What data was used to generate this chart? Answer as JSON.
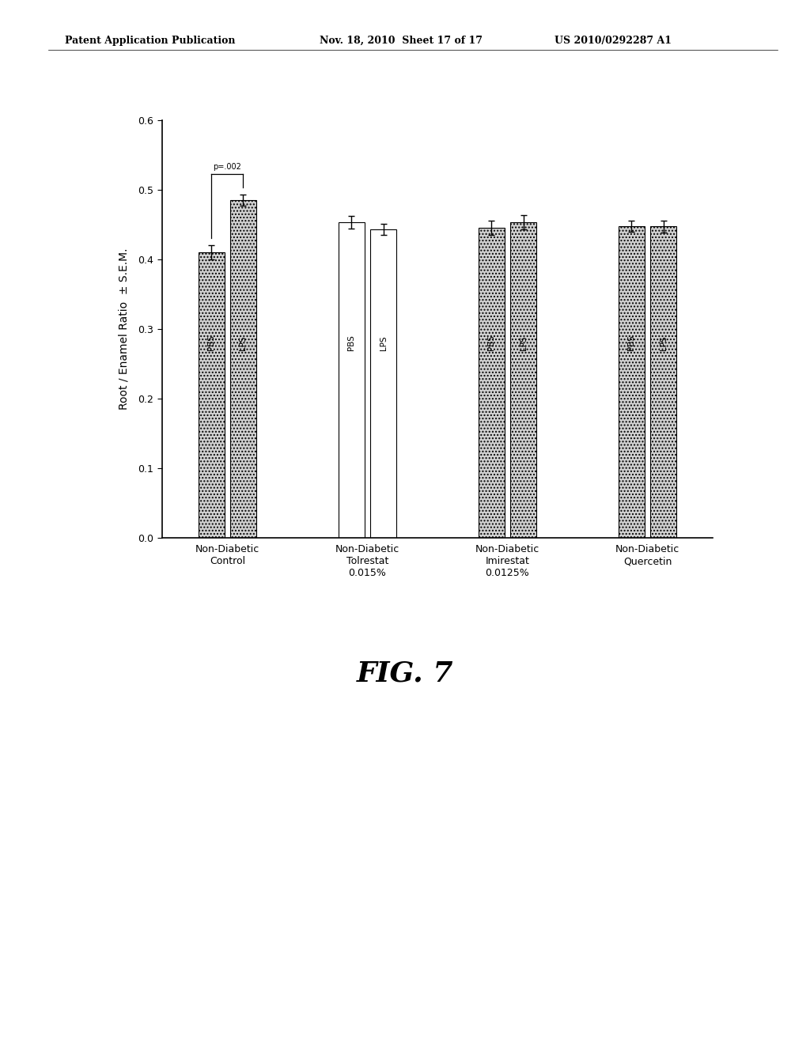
{
  "groups": [
    {
      "label": "Non-Diabetic\nControl",
      "PBS": 0.41,
      "LPS": 0.485,
      "PBS_err": 0.01,
      "LPS_err": 0.008,
      "PBS_hatch": "stipple",
      "LPS_hatch": "stipple"
    },
    {
      "label": "Non-Diabetic\nTolrestat\n0.015%",
      "PBS": 0.453,
      "LPS": 0.443,
      "PBS_err": 0.009,
      "LPS_err": 0.008,
      "PBS_hatch": "white",
      "LPS_hatch": "white"
    },
    {
      "label": "Non-Diabetic\nImirestat\n0.0125%",
      "PBS": 0.445,
      "LPS": 0.453,
      "PBS_err": 0.01,
      "LPS_err": 0.01,
      "PBS_hatch": "stipple",
      "LPS_hatch": "stipple"
    },
    {
      "label": "Non-Diabetic\nQuercetin",
      "PBS": 0.447,
      "LPS": 0.447,
      "PBS_err": 0.008,
      "LPS_err": 0.009,
      "PBS_hatch": "stipple",
      "LPS_hatch": "stipple"
    }
  ],
  "ylabel": "Root / Enamel Ratio  ± S.E.M.",
  "ylim": [
    0.0,
    0.6
  ],
  "yticks": [
    0.0,
    0.1,
    0.2,
    0.3,
    0.4,
    0.5,
    0.6
  ],
  "significance_text": "p=.002",
  "fig_label": "FIG. 7",
  "header_left": "Patent Application Publication",
  "header_mid": "Nov. 18, 2010  Sheet 17 of 17",
  "header_right": "US 2010/0292287 A1",
  "bar_width": 0.28,
  "background_color": "#ffffff",
  "bar_edge_color": "#000000"
}
